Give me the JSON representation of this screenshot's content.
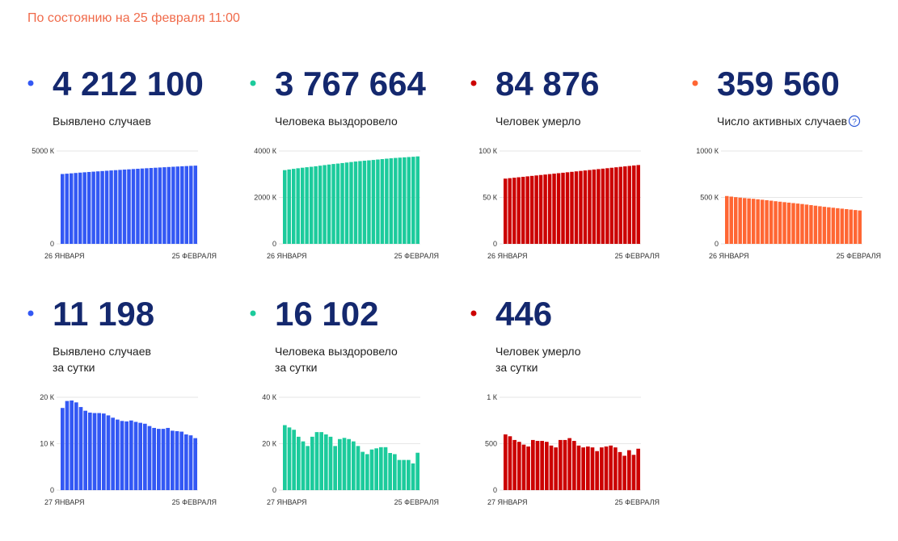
{
  "header": "По состоянию на 25 февраля 11:00",
  "chart_data": [
    {
      "type": "bar",
      "headline": "4 212 100",
      "label": [
        "Выявлено случаев"
      ],
      "color": "#3358f4",
      "categories": [
        "26 ЯНВАРЯ",
        null,
        null,
        null,
        null,
        null,
        null,
        null,
        null,
        null,
        null,
        null,
        null,
        null,
        null,
        null,
        null,
        null,
        null,
        null,
        null,
        null,
        null,
        null,
        null,
        null,
        null,
        null,
        null,
        null,
        "25 ФЕВРАЛЯ"
      ],
      "values": [
        3760400,
        3778100,
        3797300,
        3816600,
        3835500,
        3853400,
        3870500,
        3887200,
        3903800,
        3920400,
        3936900,
        3953000,
        3968600,
        3983800,
        3998700,
        4013500,
        4028500,
        4043200,
        4057700,
        4072000,
        4085800,
        4099200,
        4112400,
        4125600,
        4139000,
        4151800,
        4164500,
        4177100,
        4189100,
        4200900,
        4212100
      ],
      "ylim": [
        0,
        5000000
      ],
      "yticks": [
        0,
        {
          "value": 5000000,
          "label": "5000 К"
        }
      ],
      "grid": true
    },
    {
      "type": "bar",
      "headline": "3 767 664",
      "label": [
        "Человека выздоровело"
      ],
      "color": "#1ccb9c",
      "categories": [
        "26 ЯНВАРЯ",
        null,
        null,
        null,
        null,
        null,
        null,
        null,
        null,
        null,
        null,
        null,
        null,
        null,
        null,
        null,
        null,
        null,
        null,
        null,
        null,
        null,
        null,
        null,
        null,
        null,
        null,
        null,
        null,
        null,
        "25 ФЕВРАЛЯ"
      ],
      "values": [
        3175600,
        3203600,
        3230600,
        3256600,
        3279600,
        3300600,
        3319600,
        3342600,
        3367600,
        3392600,
        3416600,
        3439600,
        3458600,
        3480600,
        3503100,
        3525100,
        3546100,
        3565100,
        3581600,
        3597100,
        3614600,
        3632600,
        3651100,
        3669600,
        3685600,
        3701100,
        3714100,
        3727100,
        3740100,
        3751600,
        3767664
      ],
      "ylim": [
        0,
        4000000
      ],
      "yticks": [
        0,
        {
          "value": 2000000,
          "label": "2000 К"
        },
        {
          "value": 4000000,
          "label": "4000 К"
        }
      ],
      "grid": true
    },
    {
      "type": "bar",
      "headline": "84 876",
      "label": [
        "Человек умерло"
      ],
      "color": "#cc0000",
      "categories": [
        "26 ЯНВАРЯ",
        null,
        null,
        null,
        null,
        null,
        null,
        null,
        null,
        null,
        null,
        null,
        null,
        null,
        null,
        null,
        null,
        null,
        null,
        null,
        null,
        null,
        null,
        null,
        null,
        null,
        null,
        null,
        null,
        null,
        "25 ФЕВРАЛЯ"
      ],
      "values": [
        70250,
        70740,
        71230,
        71710,
        72200,
        72690,
        73180,
        73670,
        74150,
        74640,
        75130,
        75620,
        76110,
        76590,
        77080,
        77570,
        78060,
        78550,
        79030,
        79520,
        80010,
        80500,
        80990,
        81470,
        81960,
        82450,
        82940,
        83430,
        83910,
        84400,
        84876
      ],
      "ylim": [
        0,
        100000
      ],
      "yticks": [
        0,
        {
          "value": 50000,
          "label": "50 К"
        },
        {
          "value": 100000,
          "label": "100 К"
        }
      ],
      "grid": true
    },
    {
      "type": "bar",
      "headline": "359 560",
      "label": [
        "Число активных случаев"
      ],
      "color": "#ff6633",
      "categories": [
        "26 ЯНВАРЯ",
        null,
        null,
        null,
        null,
        null,
        null,
        null,
        null,
        null,
        null,
        null,
        null,
        null,
        null,
        null,
        null,
        null,
        null,
        null,
        null,
        null,
        null,
        null,
        null,
        null,
        null,
        null,
        null,
        null,
        "25 ФЕВРАЛЯ"
      ],
      "values": [
        515000,
        509000,
        503000,
        498000,
        493000,
        489000,
        485000,
        480000,
        475000,
        470000,
        465000,
        459000,
        454000,
        449000,
        444000,
        439000,
        434000,
        429000,
        423000,
        417000,
        411000,
        405000,
        399000,
        394000,
        389000,
        384000,
        379000,
        374000,
        369000,
        364000,
        359560
      ],
      "ylim": [
        0,
        1000000
      ],
      "yticks": [
        0,
        {
          "value": 500000,
          "label": "500 К"
        },
        {
          "value": 1000000,
          "label": "1000 К"
        }
      ],
      "grid": true
    },
    {
      "type": "bar",
      "headline": "11 198",
      "label": [
        "Выявлено случаев",
        "за сутки"
      ],
      "color": "#3358f4",
      "categories": [
        "27 ЯНВАРЯ",
        null,
        null,
        null,
        null,
        null,
        null,
        null,
        null,
        null,
        null,
        null,
        null,
        null,
        null,
        null,
        null,
        null,
        null,
        null,
        null,
        null,
        null,
        null,
        null,
        null,
        null,
        null,
        null,
        "25 ФЕВРАЛЯ"
      ],
      "values": [
        17700,
        19200,
        19300,
        18900,
        17900,
        17100,
        16700,
        16600,
        16600,
        16500,
        16100,
        15600,
        15200,
        14900,
        14800,
        15000,
        14700,
        14500,
        14300,
        13800,
        13400,
        13200,
        13200,
        13400,
        12800,
        12700,
        12600,
        12000,
        11800,
        11198
      ],
      "ylim": [
        0,
        20000
      ],
      "yticks": [
        0,
        {
          "value": 10000,
          "label": "10 К"
        },
        {
          "value": 20000,
          "label": "20 К"
        }
      ],
      "grid": true
    },
    {
      "type": "bar",
      "headline": "16 102",
      "label": [
        "Человека выздоровело",
        "за сутки"
      ],
      "color": "#1ccb9c",
      "categories": [
        "27 ЯНВАРЯ",
        null,
        null,
        null,
        null,
        null,
        null,
        null,
        null,
        null,
        null,
        null,
        null,
        null,
        null,
        null,
        null,
        null,
        null,
        null,
        null,
        null,
        null,
        null,
        null,
        null,
        null,
        null,
        null,
        "25 ФЕВРАЛЯ"
      ],
      "values": [
        28000,
        27000,
        26000,
        23000,
        21000,
        19000,
        23000,
        25000,
        25000,
        24000,
        23000,
        19000,
        22000,
        22500,
        22000,
        21000,
        19000,
        16500,
        15500,
        17500,
        18000,
        18500,
        18500,
        16000,
        15500,
        13000,
        13000,
        13000,
        11500,
        16102
      ],
      "ylim": [
        0,
        40000
      ],
      "yticks": [
        0,
        {
          "value": 20000,
          "label": "20 К"
        },
        {
          "value": 40000,
          "label": "40 К"
        }
      ],
      "grid": true
    },
    {
      "type": "bar",
      "headline": "446",
      "label": [
        "Человек умерло",
        "за сутки"
      ],
      "color": "#cc0000",
      "categories": [
        "27 ЯНВАРЯ",
        null,
        null,
        null,
        null,
        null,
        null,
        null,
        null,
        null,
        null,
        null,
        null,
        null,
        null,
        null,
        null,
        null,
        null,
        null,
        null,
        null,
        null,
        null,
        null,
        null,
        null,
        null,
        null,
        "25 ФЕВРАЛЯ"
      ],
      "values": [
        600,
        580,
        540,
        520,
        490,
        470,
        540,
        530,
        530,
        520,
        480,
        460,
        540,
        540,
        560,
        530,
        480,
        460,
        470,
        460,
        420,
        460,
        470,
        480,
        460,
        410,
        370,
        430,
        380,
        446
      ],
      "ylim": [
        0,
        1000
      ],
      "yticks": [
        0,
        500,
        {
          "value": 1000,
          "label": "1 К"
        }
      ],
      "grid": true
    }
  ]
}
